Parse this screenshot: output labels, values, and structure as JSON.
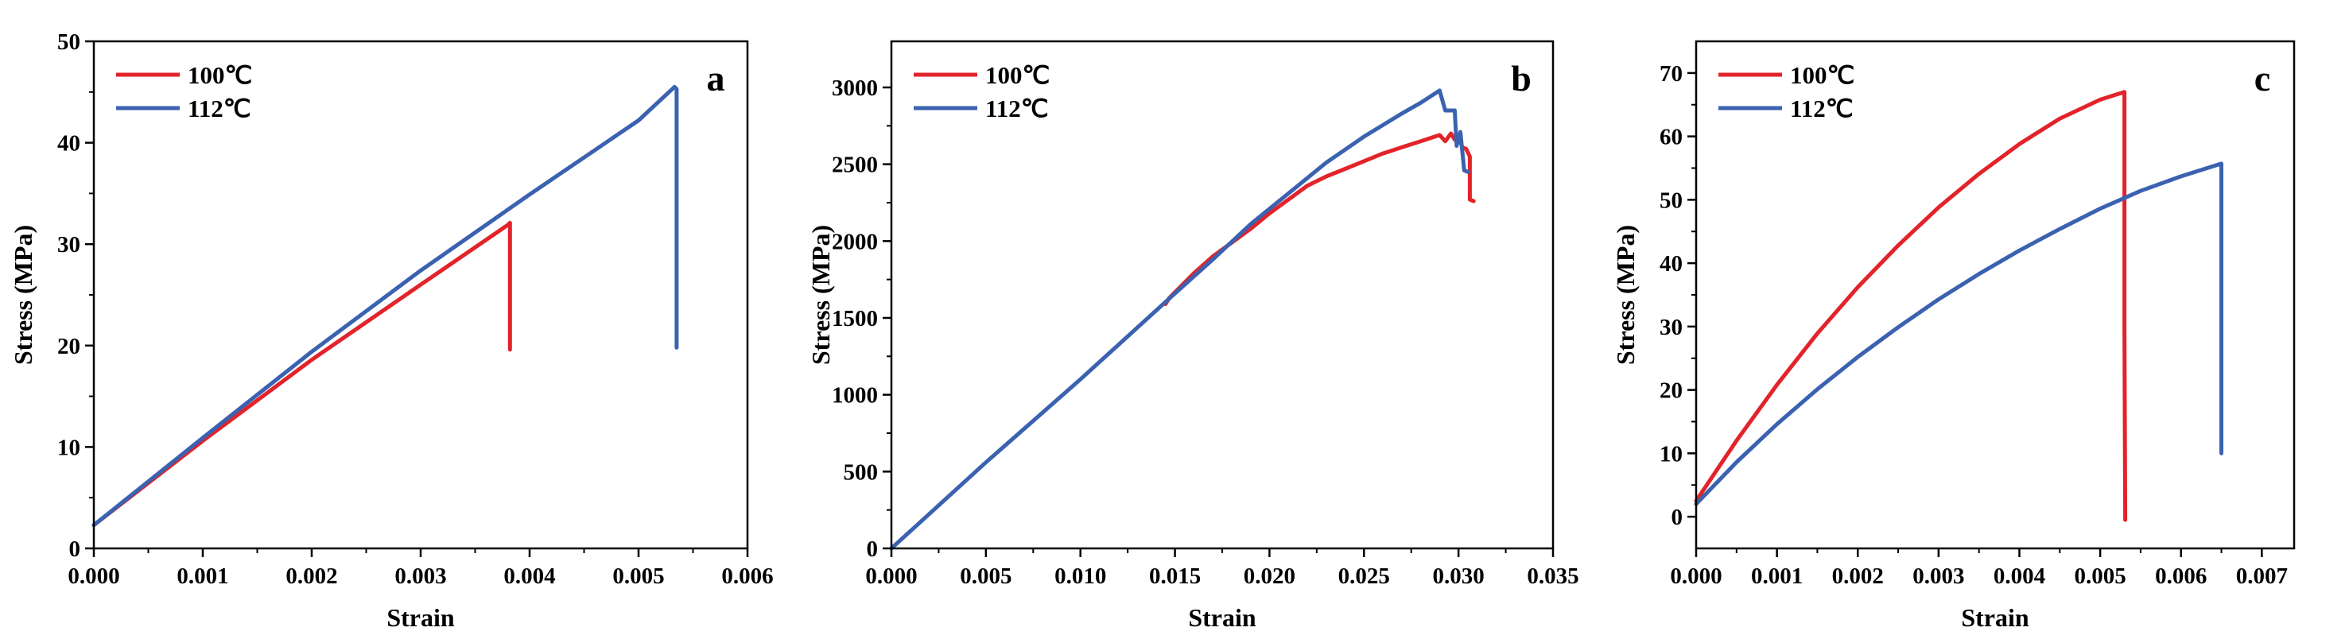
{
  "chart_data": [
    {
      "type": "line",
      "panel_label": "a",
      "xlabel": "Strain",
      "ylabel": "Stress (MPa)",
      "xlim": [
        0,
        0.006
      ],
      "ylim": [
        0,
        50
      ],
      "xticks": [
        0,
        0.001,
        0.002,
        0.003,
        0.004,
        0.005,
        0.006
      ],
      "xtick_labels": [
        "0.000",
        "0.001",
        "0.002",
        "0.003",
        "0.004",
        "0.005",
        "0.006"
      ],
      "yticks": [
        0,
        10,
        20,
        30,
        40,
        50
      ],
      "ytick_labels": [
        "0",
        "10",
        "20",
        "30",
        "40",
        "50"
      ],
      "legend_position": "top-left",
      "series": [
        {
          "name": "100℃",
          "color": "#e3232a",
          "x": [
            0,
            0.001,
            0.002,
            0.003,
            0.0038,
            0.00382,
            0.00382
          ],
          "y": [
            2.3,
            10.6,
            18.6,
            26.0,
            31.9,
            32.1,
            19.6
          ]
        },
        {
          "name": "112℃",
          "color": "#3a62b0",
          "x": [
            0,
            0.001,
            0.002,
            0.003,
            0.004,
            0.005,
            0.00533,
            0.00535,
            0.00535
          ],
          "y": [
            2.3,
            10.9,
            19.4,
            27.4,
            34.9,
            42.2,
            45.5,
            45.3,
            19.8
          ]
        }
      ]
    },
    {
      "type": "line",
      "panel_label": "b",
      "xlabel": "Strain",
      "ylabel": "Stress (MPa)",
      "xlim": [
        0,
        0.035
      ],
      "ylim": [
        0,
        3300
      ],
      "xticks": [
        0,
        0.005,
        0.01,
        0.015,
        0.02,
        0.025,
        0.03,
        0.035
      ],
      "xtick_labels": [
        "0.000",
        "0.005",
        "0.010",
        "0.015",
        "0.020",
        "0.025",
        "0.030",
        "0.035"
      ],
      "yticks": [
        0,
        500,
        1000,
        1500,
        2000,
        2500,
        3000
      ],
      "ytick_labels": [
        "0",
        "500",
        "1000",
        "1500",
        "2000",
        "2500",
        "3000"
      ],
      "legend_position": "top-left",
      "series": [
        {
          "name": "100℃",
          "color": "#e3232a",
          "x": [
            0.0145,
            0.0147,
            0.016,
            0.017,
            0.018,
            0.019,
            0.02,
            0.021,
            0.022,
            0.023,
            0.024,
            0.025,
            0.026,
            0.027,
            0.028,
            0.029,
            0.0293,
            0.0296,
            0.0298,
            0.03,
            0.0302,
            0.0304,
            0.0306,
            0.0306,
            0.0308
          ],
          "y": [
            1590,
            1630,
            1790,
            1900,
            1990,
            2080,
            2180,
            2270,
            2360,
            2420,
            2470,
            2520,
            2570,
            2610,
            2650,
            2690,
            2650,
            2700,
            2660,
            2690,
            2610,
            2600,
            2550,
            2270,
            2260
          ]
        },
        {
          "name": "112℃",
          "color": "#3a62b0",
          "x": [
            0,
            0.005,
            0.01,
            0.015,
            0.017,
            0.019,
            0.021,
            0.023,
            0.025,
            0.027,
            0.028,
            0.029,
            0.0293,
            0.0298,
            0.0299,
            0.0301,
            0.0303,
            0.0305
          ],
          "y": [
            0,
            560,
            1100,
            1660,
            1880,
            2110,
            2310,
            2510,
            2680,
            2830,
            2900,
            2980,
            2850,
            2850,
            2620,
            2710,
            2460,
            2450
          ]
        }
      ]
    },
    {
      "type": "line",
      "panel_label": "c",
      "xlabel": "Strain",
      "ylabel": "Stress (MPa)",
      "xlim": [
        0,
        0.0074
      ],
      "ylim": [
        -5,
        75
      ],
      "xticks": [
        0,
        0.001,
        0.002,
        0.003,
        0.004,
        0.005,
        0.006,
        0.007
      ],
      "xtick_labels": [
        "0.000",
        "0.001",
        "0.002",
        "0.003",
        "0.004",
        "0.005",
        "0.006",
        "0.007"
      ],
      "yticks": [
        0,
        10,
        20,
        30,
        40,
        50,
        60,
        70
      ],
      "ytick_labels": [
        "0",
        "10",
        "20",
        "30",
        "40",
        "50",
        "60",
        "70"
      ],
      "legend_position": "top-left",
      "series": [
        {
          "name": "100℃",
          "color": "#e3232a",
          "x": [
            0,
            0.0005,
            0.001,
            0.0015,
            0.002,
            0.0025,
            0.003,
            0.0035,
            0.004,
            0.0045,
            0.005,
            0.0053,
            0.0053,
            0.00531
          ],
          "y": [
            2.5,
            12.0,
            20.8,
            28.9,
            36.2,
            42.8,
            48.8,
            54.1,
            58.8,
            62.8,
            65.8,
            67.0,
            30.0,
            -0.5
          ]
        },
        {
          "name": "112℃",
          "color": "#3a62b0",
          "x": [
            0,
            0.0005,
            0.001,
            0.0015,
            0.002,
            0.0025,
            0.003,
            0.0035,
            0.004,
            0.0045,
            0.005,
            0.0055,
            0.006,
            0.0065,
            0.0065
          ],
          "y": [
            2.0,
            8.6,
            14.6,
            20.1,
            25.2,
            29.9,
            34.3,
            38.3,
            42.0,
            45.4,
            48.6,
            51.4,
            53.7,
            55.7,
            10.0
          ]
        }
      ]
    }
  ]
}
